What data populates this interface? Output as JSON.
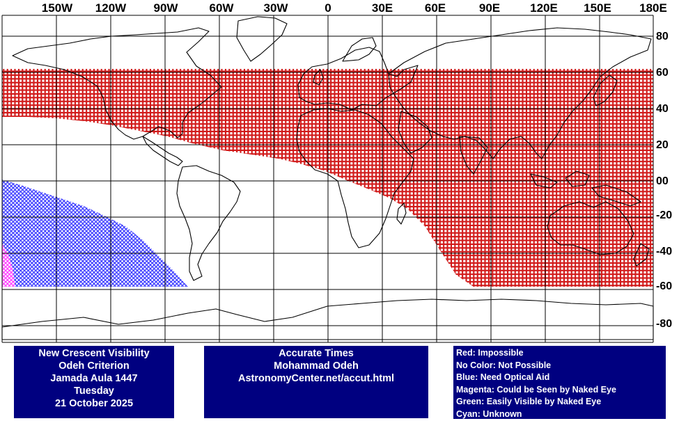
{
  "colors": {
    "impossible": "#cc0000",
    "optical_aid": "#0000ff",
    "naked_eye": "#ff00ff",
    "panel_bg": "#000080",
    "panel_text": "#ffffff"
  },
  "map": {
    "lon_labels": [
      "150W",
      "120W",
      "90W",
      "60W",
      "30W",
      "0",
      "30E",
      "60E",
      "90E",
      "120E",
      "150E",
      "180E"
    ],
    "lat_labels": [
      "80",
      "60",
      "40",
      "20",
      "00",
      "-20",
      "-40",
      "-60",
      "-80"
    ]
  },
  "info": {
    "title_lines": [
      "New Crescent Visibility",
      "Odeh Criterion",
      "Jamada Aula 1447",
      "Tuesday",
      "21 October 2025"
    ],
    "credit_lines": [
      "Accurate Times",
      "Mohammad Odeh",
      "AstronomyCenter.net/accut.html"
    ]
  },
  "legend": [
    "Red: Impossible",
    "No Color: Not Possible",
    "Blue: Need Optical Aid",
    "Magenta: Could be Seen by Naked Eye",
    "Green: Easily Visible by Naked Eye",
    "Cyan: Unknown"
  ]
}
